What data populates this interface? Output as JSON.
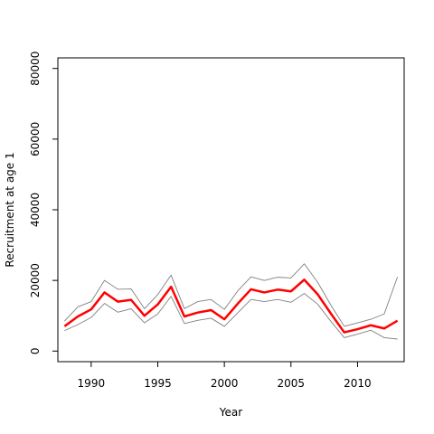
{
  "chart_data": {
    "type": "line",
    "title": "",
    "xlabel": "Year",
    "ylabel": "Recruitment at age 1",
    "xlim": [
      1987.5,
      2013.5
    ],
    "ylim": [
      -3000,
      83000
    ],
    "x_ticks": [
      1990,
      1995,
      2000,
      2005,
      2010
    ],
    "y_ticks": [
      0,
      20000,
      40000,
      60000,
      80000
    ],
    "grid": false,
    "legend": "none",
    "x": [
      1988,
      1989,
      1990,
      1991,
      1992,
      1993,
      1994,
      1995,
      1996,
      1997,
      1998,
      1999,
      2000,
      2001,
      2002,
      2003,
      2004,
      2005,
      2006,
      2007,
      2008,
      2009,
      2010,
      2011,
      2012,
      2013
    ],
    "series": [
      {
        "role": "estimate",
        "color": "#ff0000",
        "values": [
          7000,
          9800,
          11800,
          16600,
          14000,
          14500,
          10000,
          13200,
          18200,
          9800,
          10900,
          11600,
          9000,
          13400,
          17500,
          16600,
          17400,
          16900,
          20200,
          16100,
          10600,
          5300,
          6200,
          7300,
          6400,
          8600
        ]
      },
      {
        "role": "upper bound",
        "color": "#808080",
        "values": [
          8500,
          12500,
          14000,
          20000,
          17500,
          17600,
          12000,
          16000,
          21500,
          12000,
          14000,
          14600,
          11800,
          17000,
          21000,
          20000,
          20900,
          20700,
          24700,
          19500,
          13000,
          7000,
          8000,
          9000,
          10500,
          21000
        ]
      },
      {
        "role": "lower bound",
        "color": "#808080",
        "values": [
          5800,
          7500,
          9500,
          13500,
          11000,
          12000,
          8000,
          10500,
          15500,
          7800,
          8700,
          9300,
          7000,
          10800,
          14600,
          14000,
          14600,
          13800,
          16300,
          13300,
          8400,
          3800,
          4800,
          5900,
          3800,
          3400
        ]
      }
    ]
  }
}
